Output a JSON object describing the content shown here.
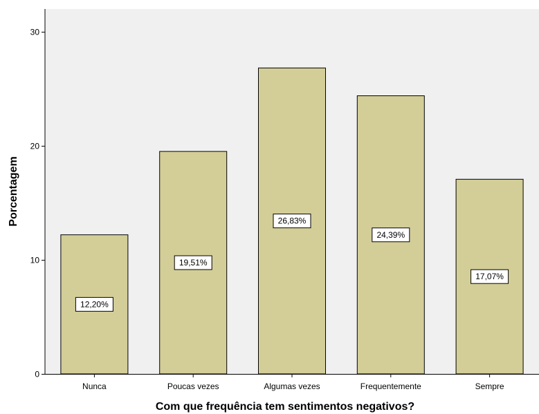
{
  "chart_data": {
    "type": "bar",
    "categories": [
      "Nunca",
      "Poucas vezes",
      "Algumas vezes",
      "Frequentemente",
      "Sempre"
    ],
    "values": [
      12.2,
      19.51,
      26.83,
      24.39,
      17.07
    ],
    "data_labels": [
      "12,20%",
      "19,51%",
      "26,83%",
      "24,39%",
      "17,07%"
    ],
    "y_ticks": [
      0,
      10,
      20,
      30
    ],
    "y_tick_labels": [
      "0",
      "10",
      "20",
      "30"
    ],
    "ylim": [
      0,
      32
    ],
    "xlabel": "Com que frequência tem sentimentos negativos?",
    "ylabel": "Porcentagem",
    "grid": false,
    "colors": {
      "bar_fill": "#D3CD98",
      "bar_stroke": "#000000",
      "plot_background": "#F0F0F0",
      "label_box_fill": "#FFFFFF"
    }
  }
}
